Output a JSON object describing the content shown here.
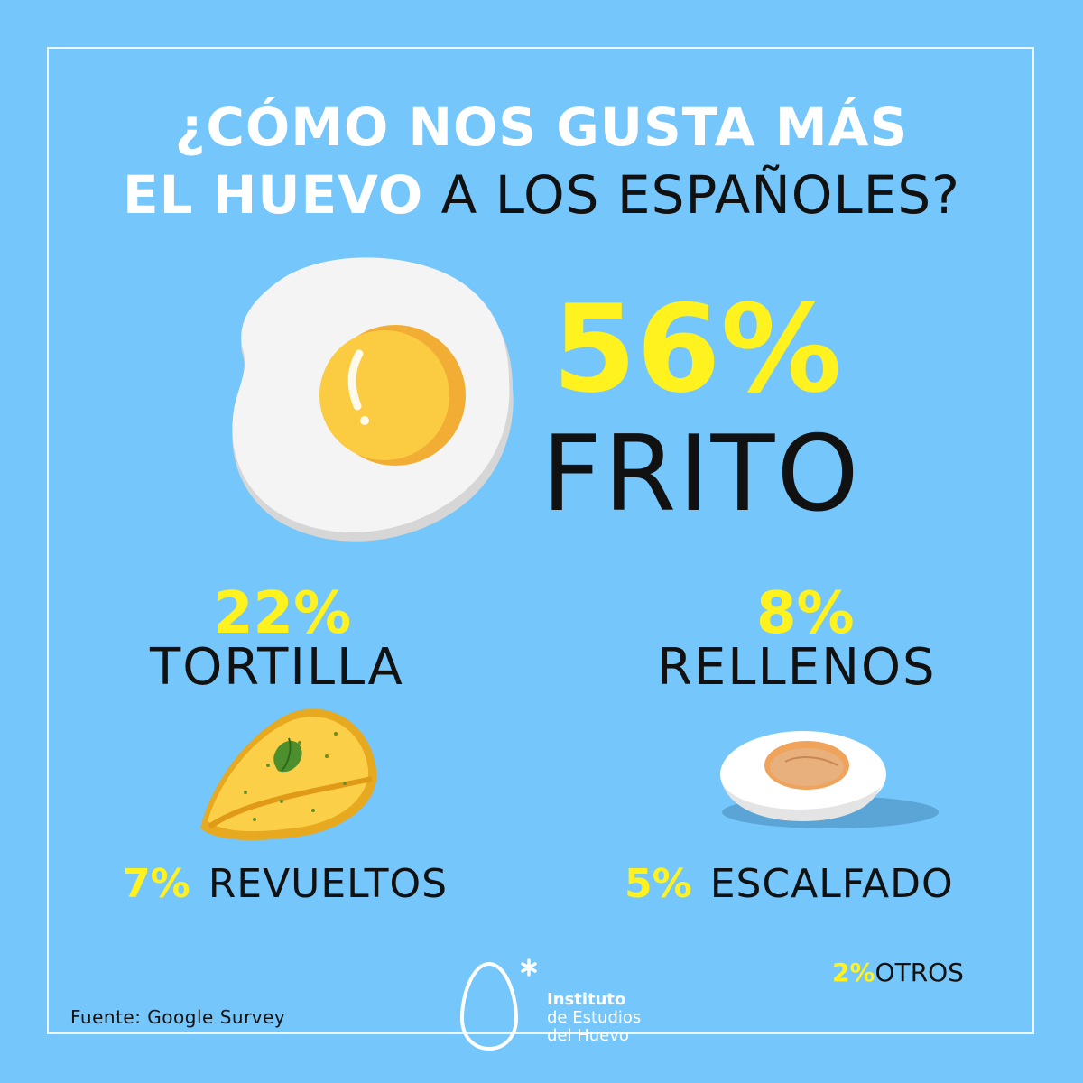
{
  "title": {
    "line1": "¿CÓMO NOS GUSTA MÁS",
    "line2_highlight": "EL HUEVO",
    "line2_rest": "A LOS ESPAÑOLES?"
  },
  "items": {
    "frito": {
      "percent": "56%",
      "label": "FRITO"
    },
    "tortilla": {
      "percent": "22%",
      "label": "TORTILLA"
    },
    "rellenos": {
      "percent": "8%",
      "label": "RELLENOS"
    },
    "revueltos": {
      "percent": "7%",
      "label": "REVUELTOS"
    },
    "escalfado": {
      "percent": "5%",
      "label": "ESCALFADO"
    },
    "otros": {
      "percent": "2%",
      "label": "OTROS"
    }
  },
  "source": "Fuente: Google Survey",
  "logo": {
    "line1": "Instituto",
    "line2": "de Estudios",
    "line3": "del Huevo"
  },
  "colors": {
    "background": "#74c6fb",
    "accent": "#fff21f",
    "text": "#111111"
  },
  "icons": [
    "fried-egg-icon",
    "omelette-icon",
    "boiled-egg-icon",
    "egg-logo-icon"
  ]
}
